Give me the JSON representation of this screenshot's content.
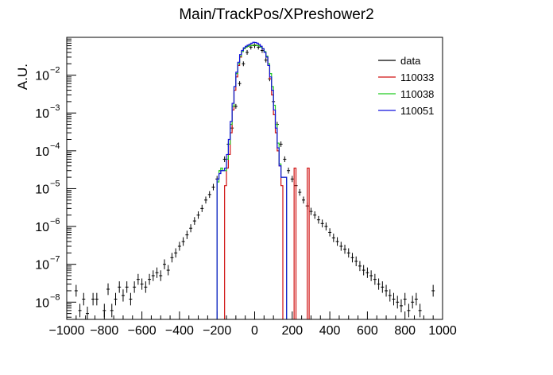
{
  "chart_data": {
    "type": "histogram",
    "title": "Main/TrackPos/XPreshower2",
    "ylabel": "A.U.",
    "xlabel": "",
    "xlim": [
      -1000,
      1000
    ],
    "ylim": [
      3.5e-09,
      0.1
    ],
    "yscale": "log",
    "x_ticks": [
      -1000,
      -800,
      -600,
      -400,
      -200,
      0,
      200,
      400,
      600,
      800,
      1000
    ],
    "x_tick_labels": [
      "−1000",
      "−800",
      "−600",
      "−400",
      "−200",
      "0",
      "200",
      "400",
      "600",
      "800",
      "1000"
    ],
    "y_ticks": [
      1e-08,
      1e-07,
      1e-06,
      1e-05,
      0.0001,
      0.001,
      0.01
    ],
    "y_tick_labels": [
      {
        "base": "10",
        "exp": "−8"
      },
      {
        "base": "10",
        "exp": "−7"
      },
      {
        "base": "10",
        "exp": "−6"
      },
      {
        "base": "10",
        "exp": "−5"
      },
      {
        "base": "10",
        "exp": "−4"
      },
      {
        "base": "10",
        "exp": "−3"
      },
      {
        "base": "10",
        "exp": "−2"
      }
    ],
    "legend_position": "top-right",
    "series": [
      {
        "name": "data",
        "color": "#000000",
        "style": "points",
        "points": [
          [
            -950,
            2e-08
          ],
          [
            -930,
            6e-09
          ],
          [
            -910,
            1.2e-08
          ],
          [
            -890,
            5e-09
          ],
          [
            -860,
            1.2e-08
          ],
          [
            -840,
            1.2e-08
          ],
          [
            -800,
            6e-09
          ],
          [
            -780,
            2.2e-08
          ],
          [
            -760,
            6e-09
          ],
          [
            -740,
            1.2e-08
          ],
          [
            -720,
            2.5e-08
          ],
          [
            -700,
            1.5e-08
          ],
          [
            -680,
            2.5e-08
          ],
          [
            -660,
            1.2e-08
          ],
          [
            -640,
            2.5e-08
          ],
          [
            -620,
            4e-08
          ],
          [
            -600,
            3e-08
          ],
          [
            -580,
            2.5e-08
          ],
          [
            -560,
            4e-08
          ],
          [
            -540,
            5e-08
          ],
          [
            -520,
            6e-08
          ],
          [
            -500,
            5e-08
          ],
          [
            -480,
            1e-07
          ],
          [
            -460,
            7e-08
          ],
          [
            -440,
            1.5e-07
          ],
          [
            -420,
            2e-07
          ],
          [
            -400,
            3e-07
          ],
          [
            -380,
            4e-07
          ],
          [
            -360,
            6e-07
          ],
          [
            -340,
            9e-07
          ],
          [
            -320,
            1.4e-06
          ],
          [
            -300,
            2e-06
          ],
          [
            -280,
            3e-06
          ],
          [
            -260,
            5e-06
          ],
          [
            -240,
            7e-06
          ],
          [
            -220,
            1.1e-05
          ],
          [
            -200,
            1.8e-05
          ],
          [
            -180,
            3e-05
          ],
          [
            -160,
            6e-05
          ],
          [
            -140,
            0.00015
          ],
          [
            -120,
            0.0004
          ],
          [
            -100,
            0.0015
          ],
          [
            -80,
            0.006
          ],
          [
            -60,
            0.02
          ],
          [
            -40,
            0.04
          ],
          [
            -20,
            0.055
          ],
          [
            0,
            0.06
          ],
          [
            20,
            0.055
          ],
          [
            40,
            0.045
          ],
          [
            60,
            0.025
          ],
          [
            80,
            0.008
          ],
          [
            100,
            0.002
          ],
          [
            120,
            0.0005
          ],
          [
            140,
            0.00015
          ],
          [
            160,
            6e-05
          ],
          [
            180,
            3e-05
          ],
          [
            200,
            1.8e-05
          ],
          [
            220,
            1.2e-05
          ],
          [
            240,
            8e-06
          ],
          [
            260,
            5e-06
          ],
          [
            280,
            3.5e-06
          ],
          [
            300,
            2.5e-06
          ],
          [
            320,
            2e-06
          ],
          [
            340,
            1.5e-06
          ],
          [
            360,
            1.2e-06
          ],
          [
            380,
            1e-06
          ],
          [
            400,
            7e-07
          ],
          [
            420,
            5e-07
          ],
          [
            440,
            4e-07
          ],
          [
            460,
            3e-07
          ],
          [
            480,
            2.5e-07
          ],
          [
            500,
            2e-07
          ],
          [
            520,
            1.5e-07
          ],
          [
            540,
            1.2e-07
          ],
          [
            560,
            9e-08
          ],
          [
            580,
            7e-08
          ],
          [
            600,
            6e-08
          ],
          [
            620,
            5e-08
          ],
          [
            640,
            4e-08
          ],
          [
            660,
            3e-08
          ],
          [
            680,
            2.5e-08
          ],
          [
            700,
            2e-08
          ],
          [
            720,
            1.5e-08
          ],
          [
            740,
            1.2e-08
          ],
          [
            760,
            1e-08
          ],
          [
            780,
            8e-09
          ],
          [
            800,
            1.2e-08
          ],
          [
            820,
            6e-09
          ],
          [
            840,
            1e-08
          ],
          [
            860,
            1.2e-08
          ],
          [
            880,
            6e-09
          ],
          [
            950,
            2e-08
          ]
        ]
      },
      {
        "name": "110033",
        "color": "#d01010",
        "style": "step",
        "bins": [
          [
            -160,
            -150,
            1.2e-05
          ],
          [
            -150,
            -140,
            3.5e-05
          ],
          [
            -140,
            -130,
            8e-05
          ],
          [
            -130,
            -120,
            0.0003
          ],
          [
            -120,
            -110,
            0.0012
          ],
          [
            -110,
            -100,
            0.004
          ],
          [
            -100,
            -90,
            0.009
          ],
          [
            -90,
            -80,
            0.018
          ],
          [
            -80,
            -70,
            0.03
          ],
          [
            -70,
            -60,
            0.042
          ],
          [
            -60,
            -50,
            0.05
          ],
          [
            -50,
            -40,
            0.055
          ],
          [
            -40,
            -30,
            0.058
          ],
          [
            -30,
            -20,
            0.06
          ],
          [
            -20,
            -10,
            0.062
          ],
          [
            -10,
            0,
            0.063
          ],
          [
            0,
            10,
            0.063
          ],
          [
            10,
            20,
            0.062
          ],
          [
            20,
            30,
            0.06
          ],
          [
            30,
            40,
            0.056
          ],
          [
            40,
            50,
            0.05
          ],
          [
            50,
            60,
            0.04
          ],
          [
            60,
            70,
            0.03
          ],
          [
            70,
            80,
            0.018
          ],
          [
            80,
            90,
            0.008
          ],
          [
            90,
            100,
            0.003
          ],
          [
            100,
            110,
            0.0009
          ],
          [
            110,
            120,
            0.0003
          ],
          [
            120,
            130,
            0.0001
          ],
          [
            130,
            140,
            4e-05
          ],
          [
            140,
            150,
            1.2e-05
          ],
          [
            210,
            220,
            3.5e-05
          ],
          [
            280,
            290,
            3.5e-05
          ]
        ]
      },
      {
        "name": "110038",
        "color": "#22cc22",
        "style": "step",
        "bins": [
          [
            -200,
            -190,
            1.5e-05
          ],
          [
            -190,
            -180,
            3e-05
          ],
          [
            -180,
            -170,
            3.5e-05
          ],
          [
            -170,
            -160,
            3e-05
          ],
          [
            -160,
            -150,
            3e-05
          ],
          [
            -150,
            -140,
            6e-05
          ],
          [
            -140,
            -130,
            0.00015
          ],
          [
            -130,
            -120,
            0.0005
          ],
          [
            -120,
            -110,
            0.0015
          ],
          [
            -110,
            -100,
            0.005
          ],
          [
            -100,
            -90,
            0.011
          ],
          [
            -90,
            -80,
            0.02
          ],
          [
            -80,
            -70,
            0.032
          ],
          [
            -70,
            -60,
            0.042
          ],
          [
            -60,
            -50,
            0.05
          ],
          [
            -50,
            -40,
            0.055
          ],
          [
            -40,
            -30,
            0.058
          ],
          [
            -30,
            -20,
            0.06
          ],
          [
            -20,
            -10,
            0.061
          ],
          [
            -10,
            0,
            0.062
          ],
          [
            0,
            10,
            0.062
          ],
          [
            10,
            20,
            0.061
          ],
          [
            20,
            30,
            0.059
          ],
          [
            30,
            40,
            0.055
          ],
          [
            40,
            50,
            0.05
          ],
          [
            50,
            60,
            0.042
          ],
          [
            60,
            70,
            0.032
          ],
          [
            70,
            80,
            0.02
          ],
          [
            80,
            90,
            0.011
          ],
          [
            90,
            100,
            0.005
          ],
          [
            100,
            110,
            0.0016
          ],
          [
            110,
            120,
            0.0005
          ],
          [
            120,
            130,
            0.00016
          ],
          [
            130,
            140,
            4.5e-05
          ],
          [
            140,
            150,
            2e-05
          ],
          [
            150,
            160,
            2e-05
          ],
          [
            160,
            170,
            2e-05
          ]
        ]
      },
      {
        "name": "110051",
        "color": "#1010dd",
        "style": "step",
        "bins": [
          [
            -200,
            -190,
            1.8e-05
          ],
          [
            -190,
            -180,
            2.5e-05
          ],
          [
            -180,
            -170,
            3e-05
          ],
          [
            -170,
            -160,
            3e-05
          ],
          [
            -160,
            -150,
            3.5e-05
          ],
          [
            -150,
            -140,
            8e-05
          ],
          [
            -140,
            -130,
            0.0002
          ],
          [
            -130,
            -120,
            0.0006
          ],
          [
            -120,
            -110,
            0.0018
          ],
          [
            -110,
            -100,
            0.005
          ],
          [
            -100,
            -90,
            0.012
          ],
          [
            -90,
            -80,
            0.022
          ],
          [
            -80,
            -70,
            0.035
          ],
          [
            -70,
            -60,
            0.045
          ],
          [
            -60,
            -50,
            0.053
          ],
          [
            -50,
            -40,
            0.058
          ],
          [
            -40,
            -30,
            0.062
          ],
          [
            -30,
            -20,
            0.066
          ],
          [
            -20,
            -10,
            0.07
          ],
          [
            -10,
            0,
            0.074
          ],
          [
            0,
            10,
            0.073
          ],
          [
            10,
            20,
            0.07
          ],
          [
            20,
            30,
            0.065
          ],
          [
            30,
            40,
            0.058
          ],
          [
            40,
            50,
            0.05
          ],
          [
            50,
            60,
            0.04
          ],
          [
            60,
            70,
            0.03
          ],
          [
            70,
            80,
            0.018
          ],
          [
            80,
            90,
            0.009
          ],
          [
            90,
            100,
            0.004
          ],
          [
            100,
            110,
            0.0012
          ],
          [
            110,
            120,
            0.0004
          ],
          [
            120,
            130,
            0.00012
          ],
          [
            130,
            140,
            4e-05
          ],
          [
            140,
            150,
            2e-05
          ],
          [
            150,
            160,
            2e-05
          ],
          [
            160,
            170,
            2e-05
          ]
        ]
      }
    ]
  }
}
